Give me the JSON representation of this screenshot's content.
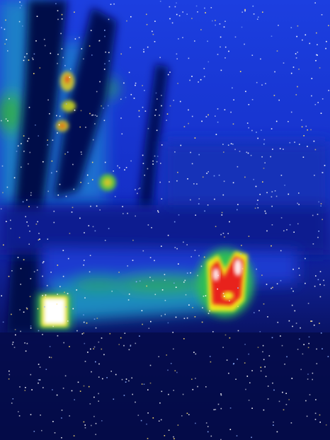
{
  "image": {
    "kind": "thermal-infrared-photo",
    "palette": {
      "background_dark": "#020a3c",
      "sky_blue": "#1a3ad8",
      "cool_cyan": "#1e8fbf",
      "warm_green": "#2fbf54",
      "hot_yellow": "#f2e81c",
      "hotter_red": "#e8201c",
      "hottest_white": "#ffffff"
    }
  }
}
